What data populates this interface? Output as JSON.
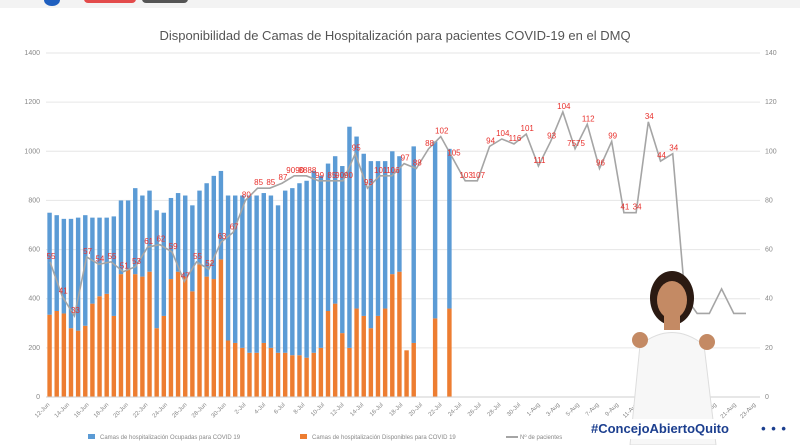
{
  "chart_data": {
    "type": "bar",
    "title": "Disponibilidad de Camas de Hospitalización para pacientes COVID-19 en el DMQ",
    "y_left": {
      "min": 0,
      "max": 1400,
      "ticks": [
        "0",
        "200",
        "400",
        "600",
        "800",
        "1000",
        "1200",
        "1400"
      ]
    },
    "y_right": {
      "min": 0,
      "max": 140,
      "ticks": [
        "0",
        "20",
        "40",
        "60",
        "80",
        "100",
        "120",
        "140"
      ]
    },
    "x_tick_labels": [
      "12-Jun",
      "14-Jun",
      "16-Jun",
      "18-Jun",
      "20-Jun",
      "22-Jun",
      "24-Jun",
      "26-Jun",
      "28-Jun",
      "30-Jun",
      "2-Jul",
      "4-Jul",
      "6-Jul",
      "8-Jul",
      "10-Jul",
      "12-Jul",
      "14-Jul",
      "16-Jul",
      "18-Jul",
      "20-Jul",
      "22-Jul",
      "24-Jul",
      "26-Jul",
      "28-Jul",
      "30-Jul",
      "1-Aug",
      "3-Aug",
      "5-Aug",
      "7-Aug",
      "9-Aug",
      "11-Aug",
      "13-Aug",
      "15-Aug",
      "17-Aug",
      "19-Aug",
      "21-Aug",
      "23-Aug"
    ],
    "series": [
      {
        "name": "Camas de hospitalización Ocupadas para COVID 19",
        "color": "#5b9bd5",
        "values": [
          415,
          390,
          385,
          445,
          460,
          450,
          350,
          320,
          310,
          405,
          300,
          280,
          350,
          330,
          330,
          480,
          420,
          330,
          320,
          330,
          350,
          300,
          380,
          420,
          360,
          590,
          600,
          620,
          640,
          640,
          610,
          620,
          600,
          660,
          680,
          700,
          720,
          740,
          700,
          600,
          600,
          680,
          900,
          700,
          660,
          680,
          630,
          600,
          500,
          470,
          0,
          800,
          0,
          0,
          720,
          0,
          650,
          0,
          0,
          0,
          0,
          0,
          0,
          0,
          0,
          0,
          0,
          0,
          0,
          0,
          0,
          0,
          0,
          0,
          0,
          0,
          0,
          0,
          0,
          0,
          0,
          0,
          0,
          0,
          0,
          0,
          0,
          0,
          0,
          0,
          0,
          0,
          0,
          0,
          0,
          0,
          0,
          0,
          0,
          0
        ]
      },
      {
        "name": "Camas de hospitalización Disponibles para COVID 19",
        "color": "#ed7d31",
        "values": [
          335,
          350,
          340,
          280,
          270,
          290,
          380,
          410,
          420,
          330,
          500,
          520,
          500,
          490,
          510,
          280,
          330,
          480,
          510,
          490,
          430,
          540,
          490,
          480,
          560,
          230,
          220,
          200,
          180,
          180,
          220,
          200,
          180,
          180,
          170,
          170,
          160,
          180,
          200,
          350,
          380,
          260,
          200,
          360,
          330,
          280,
          330,
          360,
          500,
          510,
          190,
          220,
          0,
          0,
          320,
          0,
          360,
          0,
          0,
          0,
          0,
          0,
          0,
          0,
          0,
          0,
          0,
          0,
          0,
          0,
          0,
          0,
          0,
          0,
          0,
          0,
          0,
          0,
          0,
          0,
          0,
          0,
          0,
          0,
          0,
          0,
          0,
          0,
          0,
          0,
          0,
          0,
          0,
          0,
          0,
          0,
          0,
          0,
          0,
          0
        ]
      },
      {
        "name": "Nº de pacientes",
        "color": "#a5a5a5",
        "axis": "right",
        "labeled_values": [
          55,
          41,
          33,
          57,
          54,
          55,
          51,
          53,
          61,
          62,
          59,
          47,
          55,
          52,
          63,
          67,
          80,
          85,
          85,
          87,
          90,
          90,
          88,
          88,
          88,
          99,
          85,
          90,
          90,
          95,
          93,
          101,
          106,
          97,
          88,
          88,
          102,
          105,
          103,
          107,
          94,
          104,
          116,
          101,
          111,
          93,
          104,
          75,
          75,
          112,
          96,
          99,
          41,
          34,
          34,
          44,
          34,
          34
        ]
      }
    ],
    "data_labels": [
      "55",
      "41",
      "33",
      "57",
      "54",
      "55",
      "51",
      "53",
      "61",
      "62",
      "59",
      "47",
      "55",
      "52",
      "63",
      "67",
      "80",
      "85",
      "85",
      "87",
      "9090",
      "8888",
      "99",
      "85",
      "9090",
      "95",
      "93",
      "101",
      "106",
      "97",
      "88",
      "88",
      "102",
      "105",
      "103",
      "107",
      "94",
      "104",
      "116",
      "101",
      "111",
      "93",
      "104",
      "7575",
      "112",
      "96",
      "99",
      "41",
      "34",
      "34",
      "44",
      "34",
      "34"
    ]
  },
  "hashtag": "#ConcejoAbiertoQuito"
}
